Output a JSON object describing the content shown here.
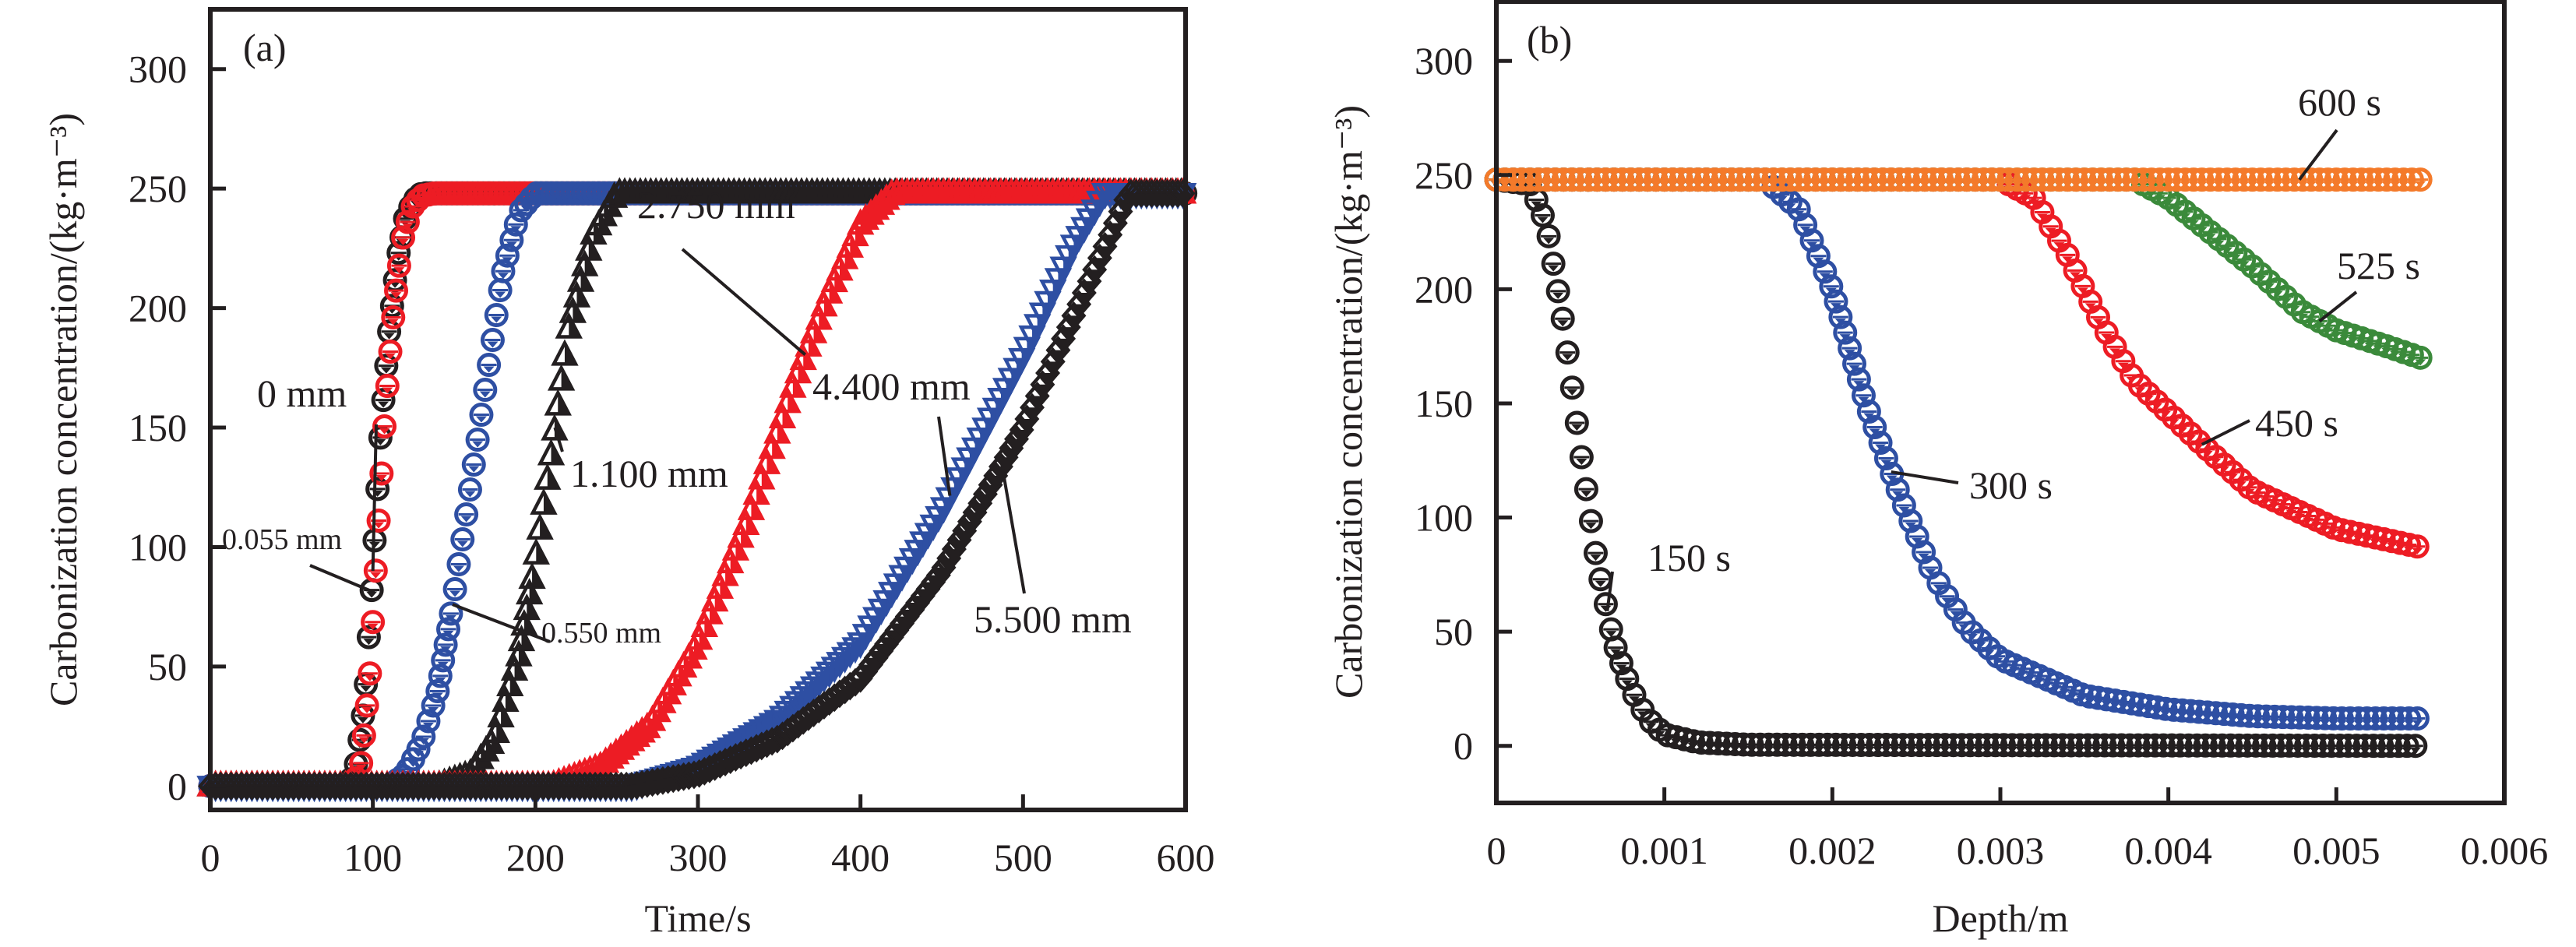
{
  "chart_data": [
    {
      "panel": "(a)",
      "type": "scatter",
      "xlabel": "Time/s",
      "ylabel": "Carbonization concentration/(kg·m⁻³)",
      "xlim": [
        0,
        600
      ],
      "ylim": [
        -10,
        325
      ],
      "xticks": [
        0,
        100,
        200,
        300,
        400,
        500,
        600
      ],
      "yticks": [
        0,
        50,
        100,
        150,
        200,
        250,
        300
      ],
      "grid": false,
      "legend": "none (inline annotations)",
      "series": [
        {
          "name": "0 mm",
          "label": "0 mm",
          "color": "#231f20",
          "marker": "circle",
          "points": [
            [
              0,
              0
            ],
            [
              85,
              0
            ],
            [
              90,
              10
            ],
            [
              95,
              35
            ],
            [
              100,
              90
            ],
            [
              105,
              150
            ],
            [
              110,
              190
            ],
            [
              115,
              220
            ],
            [
              120,
              238
            ],
            [
              125,
              245
            ],
            [
              130,
              248
            ],
            [
              600,
              248
            ]
          ],
          "annotation": {
            "text": "0 mm",
            "at_x": 100
          }
        },
        {
          "name": "0.055 mm",
          "label": "0.055 mm",
          "color": "#ed1c24",
          "marker": "circle",
          "points": [
            [
              0,
              0
            ],
            [
              88,
              0
            ],
            [
              93,
              10
            ],
            [
              98,
              45
            ],
            [
              103,
              105
            ],
            [
              108,
              160
            ],
            [
              113,
              200
            ],
            [
              118,
              228
            ],
            [
              124,
              242
            ],
            [
              130,
              247
            ],
            [
              138,
              248
            ],
            [
              600,
              248
            ]
          ],
          "annotation": {
            "text": "0.055 mm",
            "at_x": 101
          }
        },
        {
          "name": "0.550 mm",
          "label": "0.550 mm",
          "color": "#2e4fa3",
          "marker": "circle",
          "points": [
            [
              0,
              0
            ],
            [
              110,
              0
            ],
            [
              120,
              5
            ],
            [
              130,
              18
            ],
            [
              140,
              40
            ],
            [
              150,
              80
            ],
            [
              160,
              125
            ],
            [
              170,
              170
            ],
            [
              180,
              215
            ],
            [
              190,
              240
            ],
            [
              200,
              248
            ],
            [
              600,
              248
            ]
          ],
          "annotation": {
            "text": "0.550 mm",
            "at_x": 149
          }
        },
        {
          "name": "1.100 mm",
          "label": "1.100 mm",
          "color": "#231f20",
          "marker": "triangle",
          "points": [
            [
              0,
              0
            ],
            [
              140,
              0
            ],
            [
              160,
              5
            ],
            [
              175,
              20
            ],
            [
              190,
              55
            ],
            [
              200,
              95
            ],
            [
              210,
              140
            ],
            [
              220,
              190
            ],
            [
              235,
              230
            ],
            [
              250,
              248
            ],
            [
              600,
              248
            ]
          ],
          "annotation": {
            "text": "1.100 mm",
            "at_x": 212
          }
        },
        {
          "name": "2.750 mm",
          "label": "2.750 mm",
          "color": "#ed1c24",
          "marker": "triangle",
          "points": [
            [
              0,
              0
            ],
            [
              210,
              0
            ],
            [
              240,
              8
            ],
            [
              270,
              25
            ],
            [
              300,
              60
            ],
            [
              330,
              110
            ],
            [
              360,
              170
            ],
            [
              380,
              205
            ],
            [
              400,
              235
            ],
            [
              420,
              248
            ],
            [
              600,
              248
            ]
          ],
          "annotation": {
            "text": "2.750 mm",
            "at_x": 366
          }
        },
        {
          "name": "4.400 mm",
          "label": "4.400 mm",
          "color": "#2e4fa3",
          "marker": "triangle-down",
          "points": [
            [
              0,
              0
            ],
            [
              260,
              0
            ],
            [
              300,
              8
            ],
            [
              350,
              28
            ],
            [
              400,
              60
            ],
            [
              450,
              115
            ],
            [
              500,
              180
            ],
            [
              530,
              225
            ],
            [
              550,
              248
            ],
            [
              600,
              248
            ]
          ],
          "annotation": {
            "text": "4.400 mm",
            "at_x": 455
          }
        },
        {
          "name": "5.500 mm",
          "label": "5.500 mm",
          "color": "#231f20",
          "marker": "diamond",
          "points": [
            [
              0,
              0
            ],
            [
              260,
              0
            ],
            [
              300,
              5
            ],
            [
              350,
              20
            ],
            [
              400,
              45
            ],
            [
              450,
              90
            ],
            [
              500,
              150
            ],
            [
              540,
              210
            ],
            [
              565,
              248
            ],
            [
              600,
              248
            ]
          ],
          "annotation": {
            "text": "5.500 mm",
            "at_x": 487
          }
        }
      ]
    },
    {
      "panel": "(b)",
      "type": "scatter",
      "xlabel": "Depth/m",
      "ylabel": "Carbonization concentration/(kg·m⁻³)",
      "xlim": [
        0,
        0.006
      ],
      "ylim": [
        -25,
        326
      ],
      "xticks": [
        0,
        0.001,
        0.002,
        0.003,
        0.004,
        0.005,
        0.006
      ],
      "xticklabels": [
        "0",
        "0.001",
        "0.002",
        "0.003",
        "0.004",
        "0.005",
        "0.006"
      ],
      "yticks": [
        0,
        50,
        100,
        150,
        200,
        250,
        300
      ],
      "grid": false,
      "legend": "none (inline annotations)",
      "series": [
        {
          "name": "150 s",
          "label": "150 s",
          "color": "#231f20",
          "marker": "circle",
          "points": [
            [
              0,
              248
            ],
            [
              0.0002,
              246
            ],
            [
              0.0003,
              228
            ],
            [
              0.0004,
              185
            ],
            [
              0.0005,
              130
            ],
            [
              0.0006,
              80
            ],
            [
              0.0007,
              45
            ],
            [
              0.0008,
              25
            ],
            [
              0.0009,
              12
            ],
            [
              0.001,
              5
            ],
            [
              0.0012,
              1.5
            ],
            [
              0.0015,
              0.5
            ],
            [
              0.0055,
              0
            ]
          ],
          "annotation": {
            "text": "150 s",
            "at_x": 0.00066
          }
        },
        {
          "name": "300 s",
          "label": "300 s",
          "color": "#2e4fa3",
          "marker": "circle",
          "points": [
            [
              0,
              248
            ],
            [
              0.0016,
              248
            ],
            [
              0.0018,
              235
            ],
            [
              0.002,
              200
            ],
            [
              0.0022,
              150
            ],
            [
              0.0024,
              110
            ],
            [
              0.0026,
              75
            ],
            [
              0.0028,
              52
            ],
            [
              0.003,
              38
            ],
            [
              0.0035,
              22
            ],
            [
              0.004,
              16
            ],
            [
              0.0045,
              13
            ],
            [
              0.005,
              12
            ],
            [
              0.0055,
              12
            ]
          ],
          "annotation": {
            "text": "300 s",
            "at_x": 0.00235
          }
        },
        {
          "name": "450 s",
          "label": "450 s",
          "color": "#ed1c24",
          "marker": "circle",
          "points": [
            [
              0,
              248
            ],
            [
              0.003,
              248
            ],
            [
              0.0032,
              240
            ],
            [
              0.0034,
              215
            ],
            [
              0.0036,
              185
            ],
            [
              0.0038,
              160
            ],
            [
              0.0042,
              132
            ],
            [
              0.0045,
              112
            ],
            [
              0.005,
              95
            ],
            [
              0.0055,
              87
            ]
          ],
          "annotation": {
            "text": "450 s",
            "at_x": 0.0042
          }
        },
        {
          "name": "525 s",
          "label": "525 s",
          "color": "#3b8a3b",
          "marker": "circle",
          "points": [
            [
              0,
              248
            ],
            [
              0.0038,
              248
            ],
            [
              0.004,
              240
            ],
            [
              0.0042,
              228
            ],
            [
              0.0045,
              210
            ],
            [
              0.0048,
              190
            ],
            [
              0.005,
              182
            ],
            [
              0.0053,
              175
            ],
            [
              0.0055,
              170
            ]
          ],
          "annotation": {
            "text": "525 s",
            "at_x": 0.0049
          }
        },
        {
          "name": "600 s",
          "label": "600 s",
          "color": "#f47a2a",
          "marker": "circle",
          "points": [
            [
              0,
              248
            ],
            [
              0.0055,
              248
            ]
          ],
          "annotation": {
            "text": "600 s",
            "at_x": 0.00478
          }
        }
      ]
    }
  ],
  "panels": {
    "a": {
      "label": "(a)",
      "xlabel": "Time/s",
      "ylabel": "Carbonization concentration/(kg·m⁻³)",
      "xticklabels": [
        "0",
        "100",
        "200",
        "300",
        "400",
        "500",
        "600"
      ],
      "yticklabels": [
        "0",
        "50",
        "100",
        "150",
        "200",
        "250",
        "300"
      ]
    },
    "b": {
      "label": "(b)",
      "xlabel": "Depth/m",
      "ylabel": "Carbonization concentration/(kg·m⁻³)",
      "xticklabels": [
        "0",
        "0.001",
        "0.002",
        "0.003",
        "0.004",
        "0.005",
        "0.006"
      ],
      "yticklabels": [
        "0",
        "50",
        "100",
        "150",
        "200",
        "250",
        "300"
      ]
    }
  }
}
